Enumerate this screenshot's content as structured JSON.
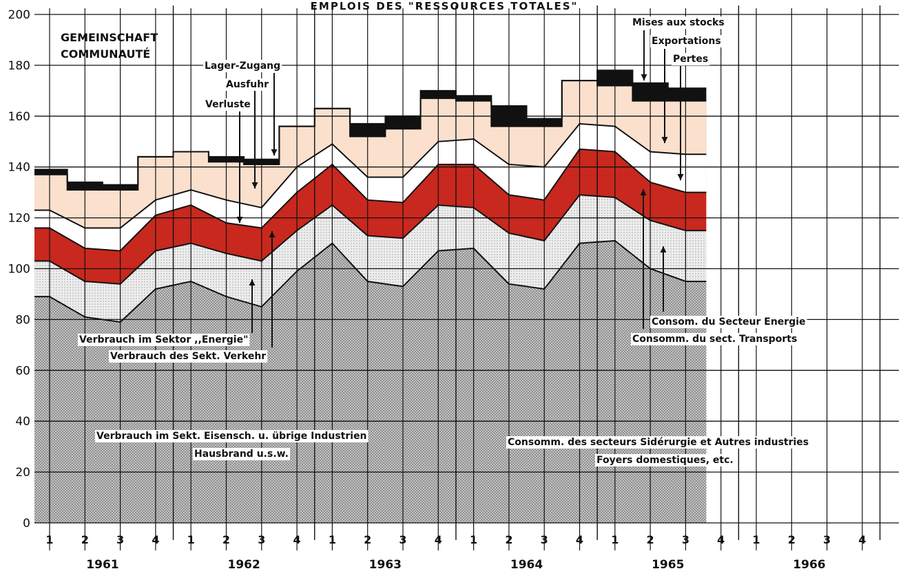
{
  "chart_data": {
    "type": "area",
    "title": "EMPLOIS DES \"RESSOURCES TOTALES\"",
    "subtitle_de": "GEMEINSCHAFT",
    "subtitle_fr": "COMMUNAUTÉ",
    "ylim": [
      0,
      200
    ],
    "yticks": [
      0,
      20,
      40,
      60,
      80,
      100,
      120,
      140,
      160,
      180,
      200
    ],
    "years": [
      "1961",
      "1962",
      "1963",
      "1964",
      "1965",
      "1966"
    ],
    "quarters": [
      "1",
      "2",
      "3",
      "4"
    ],
    "x": [
      "1961-1",
      "1961-2",
      "1961-3",
      "1961-4",
      "1962-1",
      "1962-2",
      "1962-3",
      "1962-4",
      "1963-1",
      "1963-2",
      "1963-3",
      "1963-4",
      "1964-1",
      "1964-2",
      "1964-3",
      "1964-4",
      "1965-1",
      "1965-2",
      "1965-3"
    ],
    "series": [
      {
        "name_de": "Verbrauch im Sekt. Eisensch. u. übrige Industrien / Hausbrand u.s.w.",
        "name_fr": "Consomm. des secteurs Sidérurgie et Autres industries / Foyers domestiques, etc.",
        "values": [
          89,
          81,
          79,
          92,
          95,
          89,
          85,
          99,
          110,
          95,
          93,
          107,
          108,
          94,
          92,
          110,
          111,
          100,
          95
        ],
        "color": "#c8c8c8"
      },
      {
        "name_de": "Verbrauch im Sektor ,,Energie\"",
        "name_fr": "Consom. du Secteur Energie",
        "values": [
          103,
          95,
          94,
          107,
          110,
          106,
          103,
          115,
          125,
          113,
          112,
          125,
          124,
          114,
          111,
          129,
          128,
          119,
          115
        ],
        "color": "#eeeeee"
      },
      {
        "name_de": "Verbrauch des Sekt. Verkehr",
        "name_fr": "Consomm. du sect. Transports",
        "values": [
          116,
          108,
          107,
          121,
          125,
          118,
          116,
          130,
          141,
          127,
          126,
          141,
          141,
          129,
          127,
          147,
          146,
          134,
          130
        ],
        "color": "#c8281e"
      },
      {
        "name_de": "Verluste",
        "name_fr": "Pertes",
        "values": [
          123,
          116,
          116,
          127,
          131,
          127,
          124,
          140,
          149,
          136,
          136,
          150,
          151,
          141,
          140,
          157,
          156,
          146,
          145
        ],
        "color": "#ffffff"
      },
      {
        "name_de": "Ausfuhr",
        "name_fr": "Exportations",
        "values": [
          137,
          131,
          131,
          144,
          146,
          142,
          141,
          156,
          163,
          152,
          155,
          167,
          166,
          156,
          156,
          174,
          172,
          166,
          166
        ],
        "color": "#fbe0cd"
      },
      {
        "name_de": "Lager-Zugang",
        "name_fr": "Mises aux stocks",
        "values": [
          139,
          134,
          133,
          144,
          146,
          144,
          143,
          156,
          163,
          157,
          160,
          170,
          168,
          164,
          159,
          174,
          178,
          173,
          171
        ],
        "color": "#111111"
      }
    ],
    "annotations": {
      "lager_zugang": "Lager-Zugang",
      "ausfuhr": "Ausfuhr",
      "verluste": "Verluste",
      "mises": "Mises aux stocks",
      "exportations": "Exportations",
      "pertes": "Pertes",
      "energie_de": "Verbrauch im Sektor ,,Energie\"",
      "verkehr_de": "Verbrauch des Sekt. Verkehr",
      "energie_fr": "Consom. du Secteur Energie",
      "transports_fr": "Consomm. du sect. Transports",
      "industrie_de": "Verbrauch im Sekt. Eisensch. u. übrige Industrien",
      "hausbrand_de": "Hausbrand u.s.w.",
      "industrie_fr": "Consomm. des secteurs Sidérurgie et Autres industries",
      "foyers_fr": "Foyers domestiques, etc."
    }
  }
}
